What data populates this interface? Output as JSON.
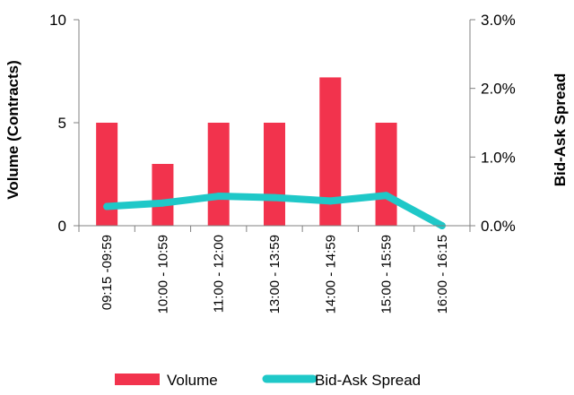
{
  "chart_data": {
    "type": "bar",
    "categories": [
      "09:15 -09:59",
      "10:00 - 10:59",
      "11:00 - 12:00",
      "13:00 - 13:59",
      "14:00 - 14:59",
      "15:00 - 15:59",
      "16:00 - 16:15"
    ],
    "series": [
      {
        "name": "Volume",
        "type": "bar",
        "axis": "left",
        "color": "#f2334d",
        "values": [
          5,
          3,
          5,
          5,
          7.2,
          5,
          0
        ]
      },
      {
        "name": "Bid-Ask Spread",
        "type": "line",
        "axis": "right",
        "color": "#1fc8c8",
        "values": [
          0.0028,
          0.0033,
          0.0043,
          0.0041,
          0.0036,
          0.0044,
          0.0
        ]
      }
    ],
    "y_left": {
      "label": "Volume (Contracts)",
      "ylim": [
        0,
        10
      ],
      "ticks": [
        0,
        5,
        10
      ],
      "tick_labels": [
        "0",
        "5",
        "10"
      ]
    },
    "y_right": {
      "label": "Bid-Ask Spread",
      "ylim": [
        0,
        0.03
      ],
      "ticks": [
        0,
        0.01,
        0.02,
        0.03
      ],
      "tick_labels": [
        "0.0%",
        "1.0%",
        "2.0%",
        "3.0%"
      ]
    },
    "grid": false,
    "legend": {
      "position": "bottom",
      "entries": [
        "Volume",
        "Bid-Ask Spread"
      ]
    }
  }
}
